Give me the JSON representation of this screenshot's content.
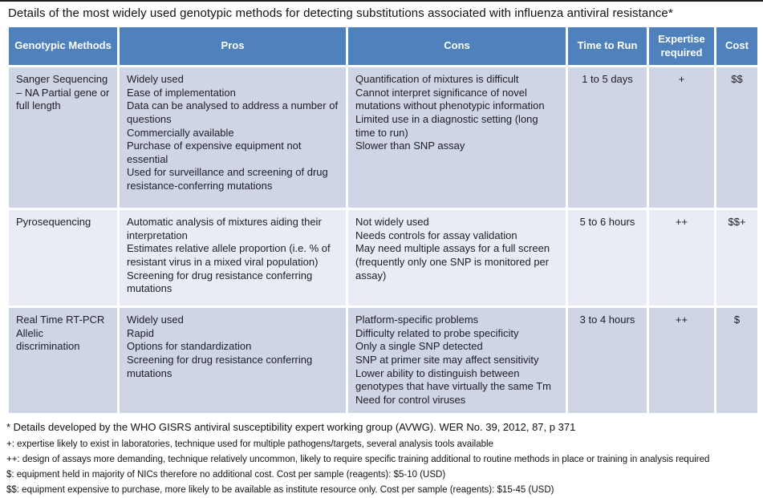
{
  "title": "Details of the most widely used genotypic methods for detecting substitutions associated with influenza antiviral resistance*",
  "colors": {
    "header_bg": "#4f81bd",
    "header_text": "#ffffff",
    "row_odd_bg": "#cfd5e5",
    "row_even_bg": "#e9ecf4",
    "grid_lines": "#ffffff"
  },
  "table": {
    "headers": [
      "Genotypic Methods",
      "Pros",
      "Cons",
      "Time to Run",
      "Expertise required",
      "Cost"
    ],
    "rows": [
      {
        "method": "Sanger Sequencing – NA Partial gene or full length",
        "pros": [
          "Widely used",
          "Ease of implementation",
          "Data can be analysed to address  a number of questions",
          "Commercially available",
          "Purchase of expensive equipment not essential",
          "Used for surveillance and screening of drug resistance-conferring mutations"
        ],
        "cons": [
          "Quantification of mixtures is difficult",
          "Cannot interpret significance of novel mutations without phenotypic information",
          "Limited use in a diagnostic setting (long time to run)",
          "Slower than SNP assay"
        ],
        "time_to_run": "1 to 5 days",
        "expertise": "+",
        "cost": "$$"
      },
      {
        "method": "Pyrosequencing",
        "pros": [
          "Automatic analysis of mixtures aiding their interpretation",
          "Estimates relative allele proportion (i.e. % of resistant virus in a mixed viral population)",
          "Screening for drug resistance conferring mutations"
        ],
        "cons": [
          "Not widely used",
          "Needs controls for assay validation",
          "May need multiple assays for a full screen (frequently only one SNP is monitored per assay)"
        ],
        "time_to_run": "5 to 6 hours",
        "expertise": "++",
        "cost": "$$+"
      },
      {
        "method": "Real Time RT-PCR Allelic discrimination",
        "pros": [
          "Widely used",
          "Rapid",
          "Options for standardization",
          "Screening for drug resistance conferring mutations"
        ],
        "cons": [
          "Platform-specific problems",
          "Difficulty related to probe specificity",
          "Only a single SNP detected",
          "SNP at primer site may affect sensitivity",
          "Lower ability to distinguish between genotypes that have virtually the same Tm",
          "Need for control viruses"
        ],
        "time_to_run": "3 to 4 hours",
        "expertise": "++",
        "cost": "$"
      }
    ]
  },
  "footnotes": [
    "*  Details developed by the WHO GISRS antiviral susceptibility expert working group (AVWG). WER No. 39, 2012,  87, p 371",
    "+: expertise likely to exist in laboratories, technique used for multiple pathogens/targets, several analysis tools available",
    "++: design of assays more demanding, technique relatively uncommon, likely to require specific training additional to routine methods in place or training in analysis required",
    "$: equipment held in majority of NICs therefore no additional cost. Cost per sample (reagents): $5-10 (USD)",
    "$$: equipment expensive to purchase, more likely to be available as institute resource only. Cost per sample (reagents): $15-45 (USD)"
  ]
}
